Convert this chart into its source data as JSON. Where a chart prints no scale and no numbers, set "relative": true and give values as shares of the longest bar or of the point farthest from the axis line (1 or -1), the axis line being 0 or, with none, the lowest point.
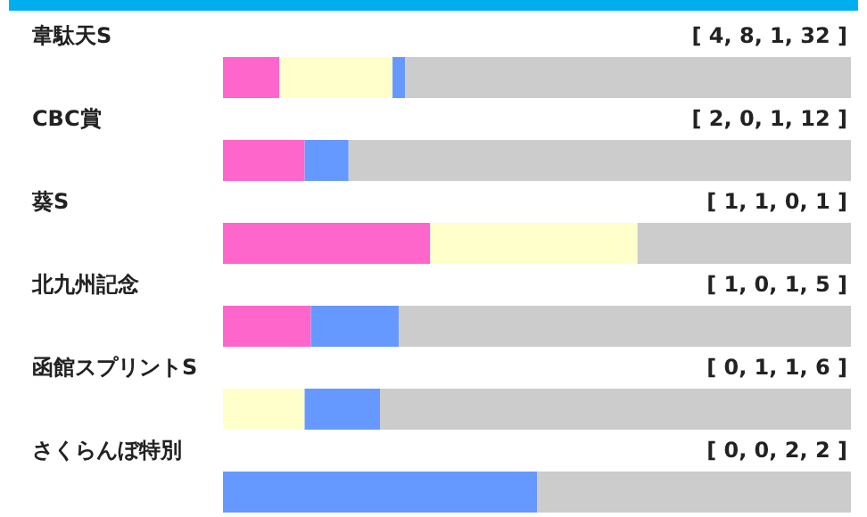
{
  "chart_data": {
    "type": "bar",
    "orientation": "horizontal",
    "stacked": true,
    "relative": true,
    "tick_labels": "y",
    "categories": [
      "韋駄天S",
      "CBC賞",
      "葵S",
      "北九州記念",
      "函館スプリントS",
      "さくらんぼ特別"
    ],
    "series": [
      {
        "color": "#ff66cc",
        "values": [
          0.09,
          0.13,
          0.33,
          0.14,
          0,
          0
        ]
      },
      {
        "color": "#ffffcc",
        "values": [
          0.18,
          0,
          0.33,
          0,
          0.13,
          0
        ]
      },
      {
        "color": "#6699ff",
        "values": [
          0.02,
          0.07,
          0,
          0.14,
          0.12,
          0.5
        ]
      },
      {
        "color": "#cccccc",
        "values": [
          0.71,
          0.8,
          0.34,
          0.72,
          0.75,
          0.5
        ]
      }
    ],
    "annotations": [
      "[ 4, 8, 1, 32 ]",
      "[ 2, 0, 1, 12 ]",
      "[ 1, 1, 0, 1 ]",
      "[ 1, 0, 1, 5 ]",
      "[ 0, 1, 1, 6 ]",
      "[ 0, 0, 2, 2 ]"
    ]
  }
}
